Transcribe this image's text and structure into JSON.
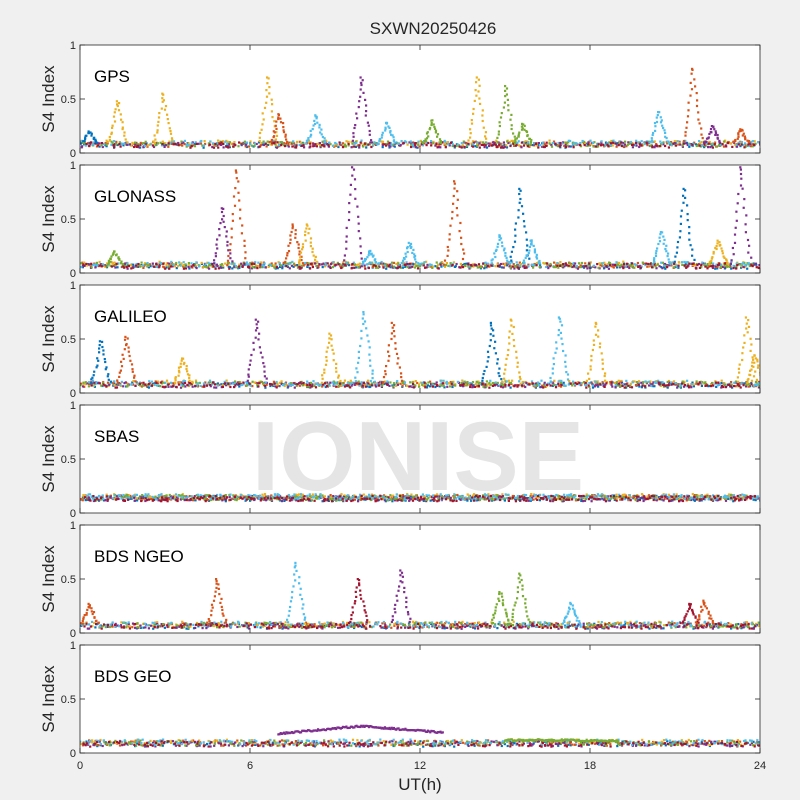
{
  "figure_title": "SXWN20250426",
  "watermark": "IONISE",
  "colors": [
    "#0072BD",
    "#D95319",
    "#EDB120",
    "#7E2F8E",
    "#77AC30",
    "#4DBEEE",
    "#A2142F"
  ],
  "chart_data": {
    "type": "scatter",
    "title": "SXWN20250426",
    "xlabel": "UT(h)",
    "ylabel": "S4 Index",
    "xlim": [
      0,
      24
    ],
    "ylim": [
      0,
      1
    ],
    "xticks": [
      0,
      6,
      12,
      18,
      24
    ],
    "xtick_labels": [
      "0",
      "6",
      "12",
      "18",
      "24"
    ],
    "yticks": [
      0,
      0.5,
      1
    ],
    "ytick_labels": [
      "0",
      "0.5",
      "1"
    ],
    "grid": false,
    "panels": [
      {
        "name": "GPS",
        "baseline": 0.07,
        "spikes": [
          {
            "x": 0.3,
            "y": 0.2,
            "series": 0
          },
          {
            "x": 1.3,
            "y": 0.48,
            "series": 2
          },
          {
            "x": 2.9,
            "y": 0.55,
            "series": 2
          },
          {
            "x": 6.6,
            "y": 0.7,
            "series": 2
          },
          {
            "x": 7.0,
            "y": 0.36,
            "series": 1
          },
          {
            "x": 8.3,
            "y": 0.35,
            "series": 5
          },
          {
            "x": 9.9,
            "y": 0.7,
            "series": 3
          },
          {
            "x": 10.8,
            "y": 0.28,
            "series": 5
          },
          {
            "x": 12.4,
            "y": 0.3,
            "series": 4
          },
          {
            "x": 14.0,
            "y": 0.7,
            "series": 2
          },
          {
            "x": 15.0,
            "y": 0.62,
            "series": 4
          },
          {
            "x": 15.6,
            "y": 0.27,
            "series": 4
          },
          {
            "x": 20.4,
            "y": 0.38,
            "series": 5
          },
          {
            "x": 21.6,
            "y": 0.78,
            "series": 1
          },
          {
            "x": 22.3,
            "y": 0.25,
            "series": 3
          },
          {
            "x": 23.3,
            "y": 0.22,
            "series": 1
          }
        ]
      },
      {
        "name": "GLONASS",
        "baseline": 0.06,
        "spikes": [
          {
            "x": 1.2,
            "y": 0.2,
            "series": 4
          },
          {
            "x": 5.0,
            "y": 0.6,
            "series": 3
          },
          {
            "x": 5.5,
            "y": 0.95,
            "series": 1
          },
          {
            "x": 7.5,
            "y": 0.45,
            "series": 1
          },
          {
            "x": 8.0,
            "y": 0.45,
            "series": 2
          },
          {
            "x": 9.6,
            "y": 0.98,
            "series": 3
          },
          {
            "x": 10.2,
            "y": 0.2,
            "series": 5
          },
          {
            "x": 11.6,
            "y": 0.28,
            "series": 5
          },
          {
            "x": 13.2,
            "y": 0.85,
            "series": 1
          },
          {
            "x": 14.8,
            "y": 0.35,
            "series": 5
          },
          {
            "x": 15.5,
            "y": 0.78,
            "series": 0
          },
          {
            "x": 15.9,
            "y": 0.3,
            "series": 5
          },
          {
            "x": 20.5,
            "y": 0.38,
            "series": 5
          },
          {
            "x": 21.3,
            "y": 0.78,
            "series": 0
          },
          {
            "x": 22.5,
            "y": 0.3,
            "series": 2
          },
          {
            "x": 23.3,
            "y": 0.98,
            "series": 3
          }
        ]
      },
      {
        "name": "GALILEO",
        "baseline": 0.07,
        "spikes": [
          {
            "x": 0.7,
            "y": 0.48,
            "series": 0
          },
          {
            "x": 1.6,
            "y": 0.52,
            "series": 1
          },
          {
            "x": 3.6,
            "y": 0.32,
            "series": 2
          },
          {
            "x": 6.2,
            "y": 0.68,
            "series": 3
          },
          {
            "x": 8.8,
            "y": 0.55,
            "series": 2
          },
          {
            "x": 10.0,
            "y": 0.75,
            "series": 5
          },
          {
            "x": 11.0,
            "y": 0.65,
            "series": 1
          },
          {
            "x": 14.5,
            "y": 0.65,
            "series": 0
          },
          {
            "x": 15.2,
            "y": 0.68,
            "series": 2
          },
          {
            "x": 16.9,
            "y": 0.7,
            "series": 5
          },
          {
            "x": 18.2,
            "y": 0.65,
            "series": 2
          },
          {
            "x": 23.5,
            "y": 0.7,
            "series": 2
          },
          {
            "x": 23.8,
            "y": 0.35,
            "series": 2
          }
        ]
      },
      {
        "name": "SBAS",
        "baseline": 0.13,
        "spikes": []
      },
      {
        "name": "BDS NGEO",
        "baseline": 0.06,
        "spikes": [
          {
            "x": 0.3,
            "y": 0.27,
            "series": 1
          },
          {
            "x": 4.8,
            "y": 0.5,
            "series": 1
          },
          {
            "x": 7.6,
            "y": 0.65,
            "series": 5
          },
          {
            "x": 9.8,
            "y": 0.5,
            "series": 6
          },
          {
            "x": 11.3,
            "y": 0.58,
            "series": 3
          },
          {
            "x": 14.8,
            "y": 0.38,
            "series": 4
          },
          {
            "x": 15.5,
            "y": 0.55,
            "series": 4
          },
          {
            "x": 17.3,
            "y": 0.28,
            "series": 5
          },
          {
            "x": 21.5,
            "y": 0.27,
            "series": 6
          },
          {
            "x": 22.0,
            "y": 0.3,
            "series": 1
          }
        ]
      },
      {
        "name": "BDS GEO",
        "baseline": 0.08,
        "arcs": [
          {
            "x0": 7.0,
            "x1": 12.8,
            "y_start": 0.18,
            "y_peak": 0.25,
            "y_end": 0.19,
            "series": 3
          },
          {
            "x0": 15.0,
            "x1": 19.0,
            "y_start": 0.12,
            "y_peak": 0.12,
            "y_end": 0.11,
            "series": 4
          }
        ],
        "spikes": []
      }
    ]
  }
}
